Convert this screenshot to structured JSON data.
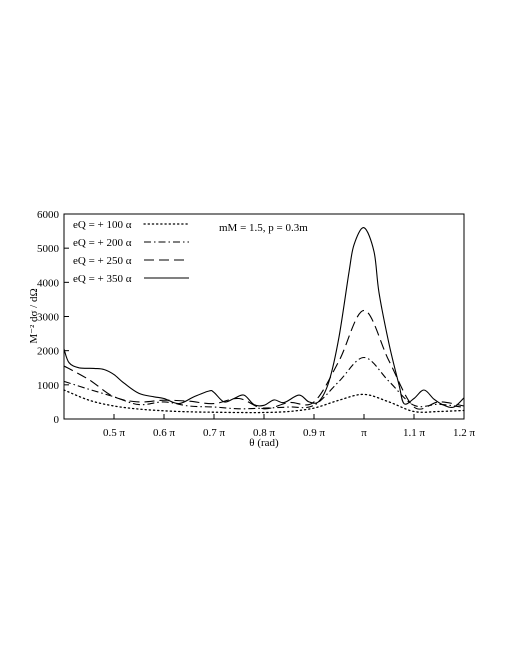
{
  "chart_data": {
    "type": "line",
    "title": "",
    "annotation": "mM = 1.5,   p = 0.3m",
    "xlabel": "θ (rad)",
    "ylabel": "M⁻² dσ / dΩ",
    "xlim": [
      0.4,
      1.2
    ],
    "ylim": [
      0,
      6000
    ],
    "x_ticks": [
      {
        "value": 0.5,
        "label": "0.5 π"
      },
      {
        "value": 0.6,
        "label": "0.6 π"
      },
      {
        "value": 0.7,
        "label": "0.7 π"
      },
      {
        "value": 0.8,
        "label": "0.8 π"
      },
      {
        "value": 0.9,
        "label": "0.9 π"
      },
      {
        "value": 1.0,
        "label": "π"
      },
      {
        "value": 1.1,
        "label": "1.1 π"
      },
      {
        "value": 1.2,
        "label": "1.2 π"
      }
    ],
    "y_ticks": [
      0,
      1000,
      2000,
      3000,
      4000,
      5000,
      6000
    ],
    "grid": false,
    "legend_position": "top-left",
    "series": [
      {
        "name": "eQ = + 100 α",
        "style": "dotted",
        "x": [
          0.4,
          0.45,
          0.5,
          0.55,
          0.6,
          0.65,
          0.7,
          0.75,
          0.8,
          0.85,
          0.9,
          0.95,
          1.0,
          1.05,
          1.1,
          1.15,
          1.2
        ],
        "y": [
          850,
          550,
          380,
          290,
          240,
          210,
          200,
          190,
          190,
          220,
          320,
          550,
          720,
          500,
          220,
          220,
          250
        ]
      },
      {
        "name": "eQ = + 200 α",
        "style": "dash-dot",
        "x": [
          0.4,
          0.45,
          0.5,
          0.55,
          0.6,
          0.65,
          0.7,
          0.75,
          0.8,
          0.85,
          0.9,
          0.95,
          1.0,
          1.05,
          1.1,
          1.15,
          1.2
        ],
        "y": [
          1100,
          870,
          650,
          420,
          500,
          380,
          350,
          300,
          320,
          350,
          400,
          1100,
          1800,
          1100,
          400,
          430,
          340
        ]
      },
      {
        "name": "eQ = + 250 α",
        "style": "dashed",
        "x": [
          0.4,
          0.45,
          0.5,
          0.55,
          0.6,
          0.65,
          0.7,
          0.75,
          0.8,
          0.85,
          0.9,
          0.95,
          1.0,
          1.05,
          1.1,
          1.15,
          1.2
        ],
        "y": [
          1550,
          1150,
          650,
          500,
          550,
          520,
          450,
          600,
          300,
          480,
          500,
          1700,
          3180,
          1700,
          350,
          500,
          380
        ]
      },
      {
        "name": "eQ = + 350 α",
        "style": "solid",
        "x": [
          0.4,
          0.41,
          0.43,
          0.46,
          0.48,
          0.5,
          0.52,
          0.55,
          0.58,
          0.6,
          0.63,
          0.66,
          0.69,
          0.7,
          0.72,
          0.74,
          0.76,
          0.78,
          0.8,
          0.82,
          0.84,
          0.87,
          0.89,
          0.91,
          0.93,
          0.95,
          0.97,
          0.98,
          1.0,
          1.02,
          1.03,
          1.05,
          1.07,
          1.08,
          1.1,
          1.12,
          1.14,
          1.16,
          1.18,
          1.2
        ],
        "y": [
          2050,
          1650,
          1500,
          1480,
          1450,
          1300,
          1050,
          750,
          650,
          600,
          450,
          650,
          820,
          780,
          500,
          600,
          700,
          420,
          400,
          560,
          480,
          700,
          500,
          520,
          1100,
          2400,
          4300,
          5100,
          5600,
          4900,
          3700,
          2200,
          1000,
          450,
          600,
          850,
          580,
          400,
          350,
          620
        ]
      }
    ]
  }
}
